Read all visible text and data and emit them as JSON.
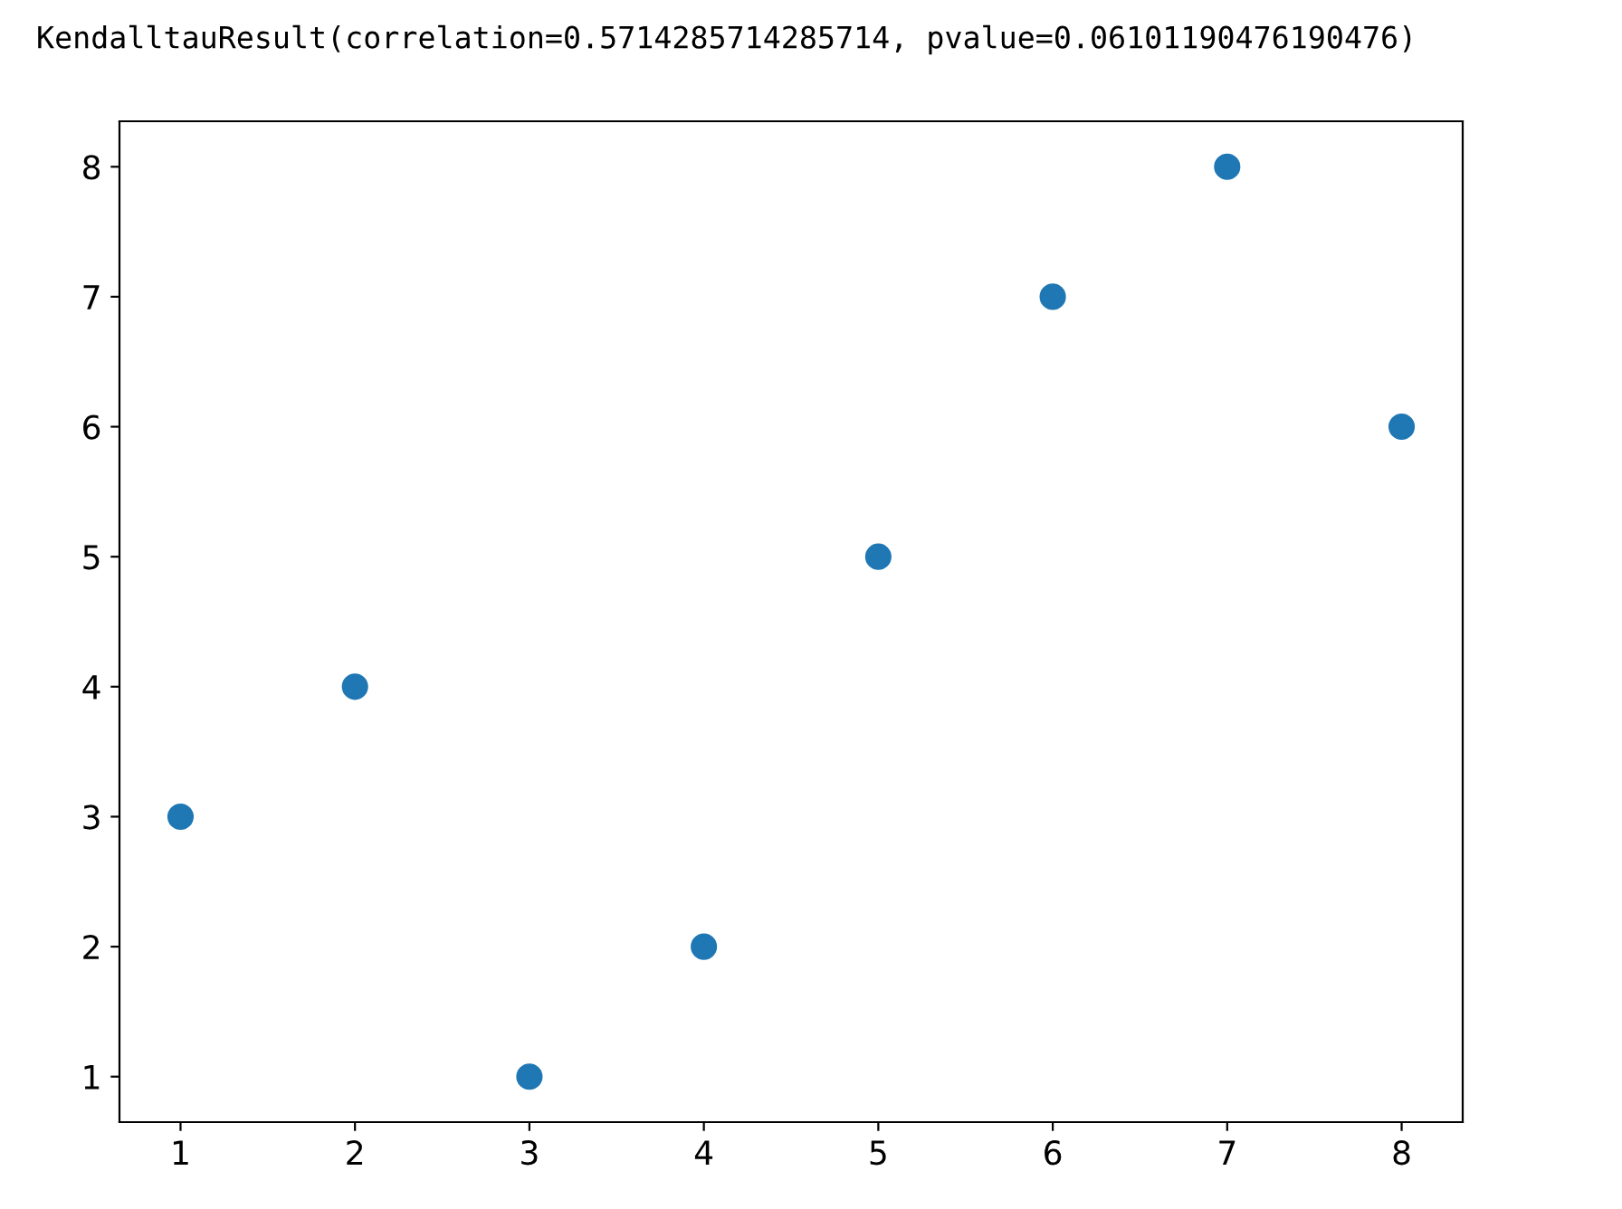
{
  "chart_data": {
    "type": "scatter",
    "title": "KendalltauResult(correlation=0.5714285714285714, pvalue=0.06101190476190476)",
    "x": [
      1,
      2,
      3,
      4,
      5,
      6,
      7,
      8
    ],
    "series": [
      {
        "color": "#1f77b4",
        "values": [
          3,
          4,
          1,
          2,
          5,
          7,
          8,
          6
        ]
      }
    ],
    "xlim": [
      0.65,
      8.35
    ],
    "ylim": [
      0.65,
      8.35
    ],
    "xticks": [
      1,
      2,
      3,
      4,
      5,
      6,
      7,
      8
    ],
    "yticks": [
      1,
      2,
      3,
      4,
      5,
      6,
      7,
      8
    ],
    "marker": "circle",
    "grid": false,
    "legend": false
  }
}
